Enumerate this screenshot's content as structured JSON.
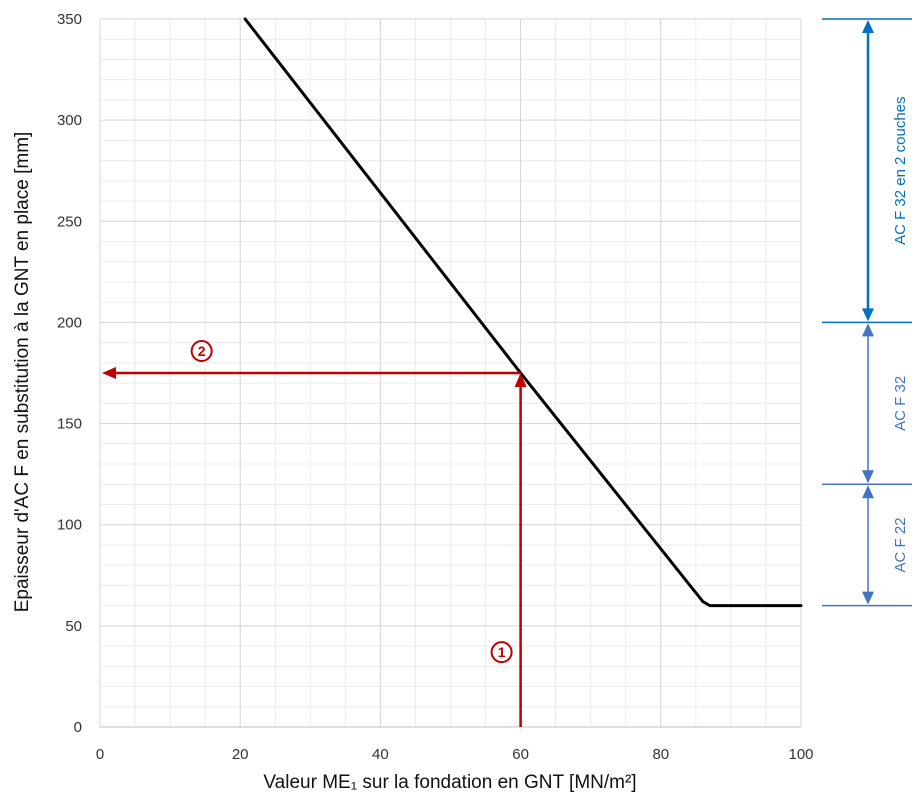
{
  "chart_data": {
    "type": "line",
    "xlabel": "Valeur ME₁ sur la fondation en GNT [MN/m²]",
    "ylabel": "Epaisseur d'AC F en substitution à la GNT en place [mm]",
    "xlim": [
      0,
      100
    ],
    "ylim": [
      0,
      350
    ],
    "x_ticks": [
      0,
      20,
      40,
      60,
      80,
      100
    ],
    "y_ticks": [
      0,
      50,
      100,
      150,
      200,
      250,
      300,
      350
    ],
    "grid": true,
    "series": [
      {
        "x": [
          20.7,
          60,
          86,
          87,
          100
        ],
        "y": [
          350,
          175,
          62,
          60,
          60
        ],
        "color": "#000000"
      }
    ],
    "example": {
      "me1": 60,
      "thickness": 175,
      "markers": [
        "1",
        "2"
      ],
      "color": "#c00000"
    },
    "bands": [
      {
        "label": "AC F 32 en 2 couches",
        "from": 200,
        "to": 350
      },
      {
        "label": "AC F 32",
        "from": 120,
        "to": 200
      },
      {
        "label": "AC F 22",
        "from": 60,
        "to": 120
      }
    ],
    "colors": {
      "grid_major": "#d4d4d4",
      "grid_minor": "#ececec",
      "curve": "#000000",
      "example": "#c00000",
      "band_blue": "#0070c0",
      "band_steel": "#4472c4"
    }
  }
}
